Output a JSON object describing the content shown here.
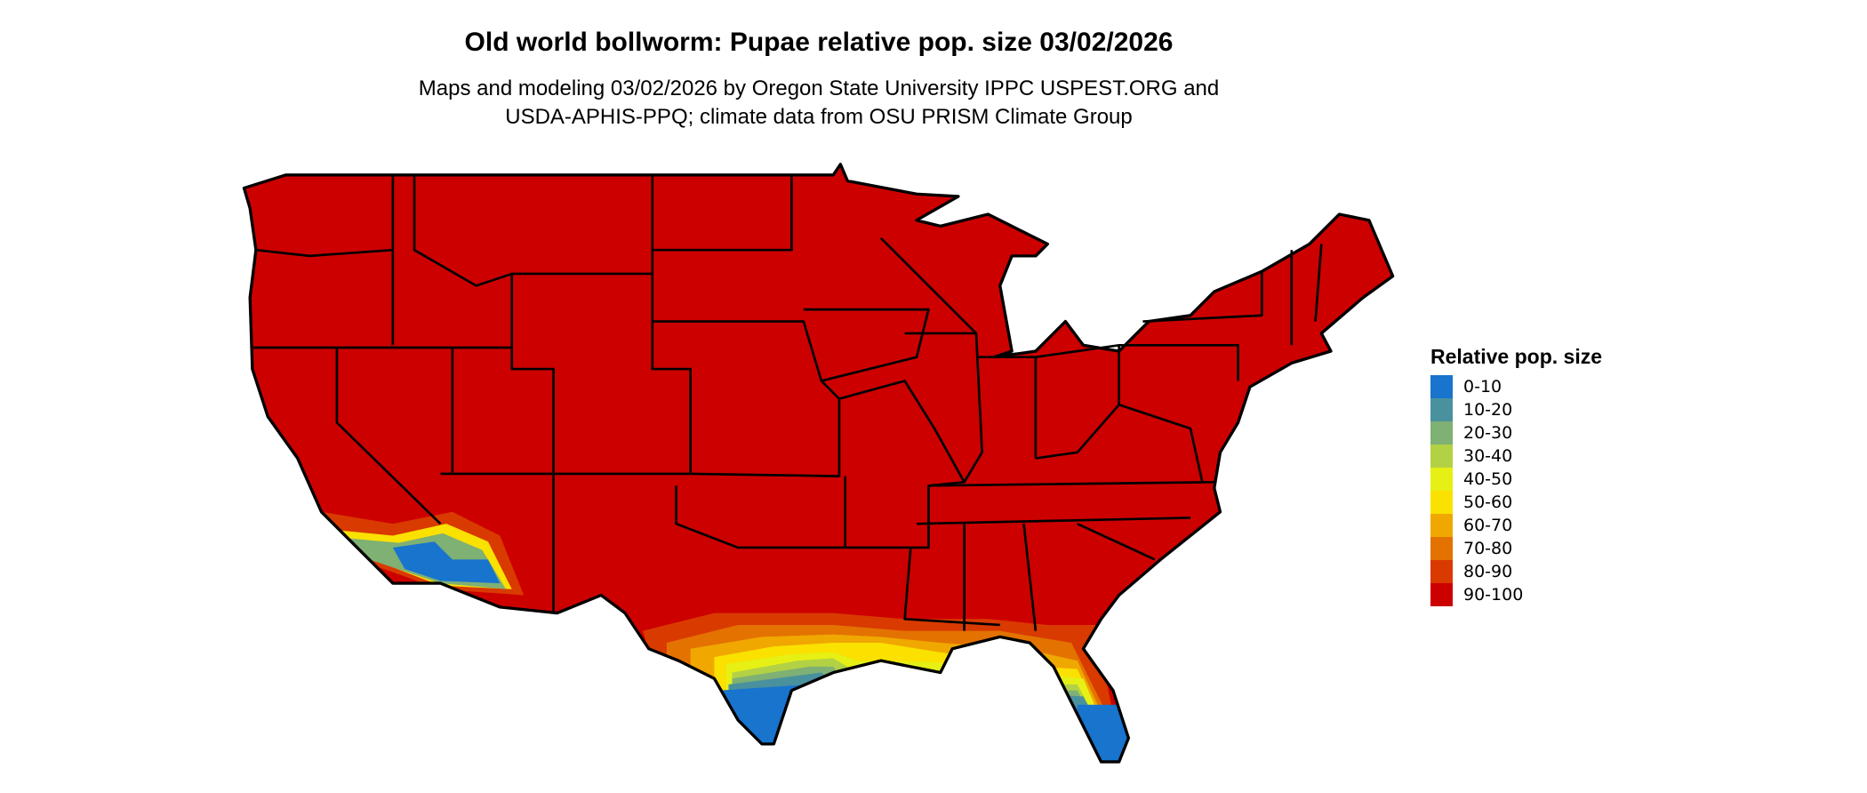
{
  "title": "Old world bollworm: Pupae relative pop. size 03/02/2026",
  "subtitle_line1": "Maps and modeling 03/02/2026 by Oregon State University IPPC USPEST.ORG and",
  "subtitle_line2": "USDA-APHIS-PPQ; climate data from OSU PRISM Climate Group",
  "chart_data": {
    "type": "map",
    "region": "contiguous United States",
    "dominant_class": "90-100",
    "legend": {
      "title": "Relative pop. size",
      "placement": "right",
      "items": [
        {
          "label": "0-10",
          "color": "#1874cd"
        },
        {
          "label": "10-20",
          "color": "#4a919e"
        },
        {
          "label": "20-30",
          "color": "#7fb074"
        },
        {
          "label": "30-40",
          "color": "#b2d145"
        },
        {
          "label": "40-50",
          "color": "#e6f015"
        },
        {
          "label": "50-60",
          "color": "#fae100"
        },
        {
          "label": "60-70",
          "color": "#f0a800"
        },
        {
          "label": "70-80",
          "color": "#e37200"
        },
        {
          "label": "80-90",
          "color": "#d93a00"
        },
        {
          "label": "90-100",
          "color": "#cd0000"
        }
      ]
    }
  }
}
